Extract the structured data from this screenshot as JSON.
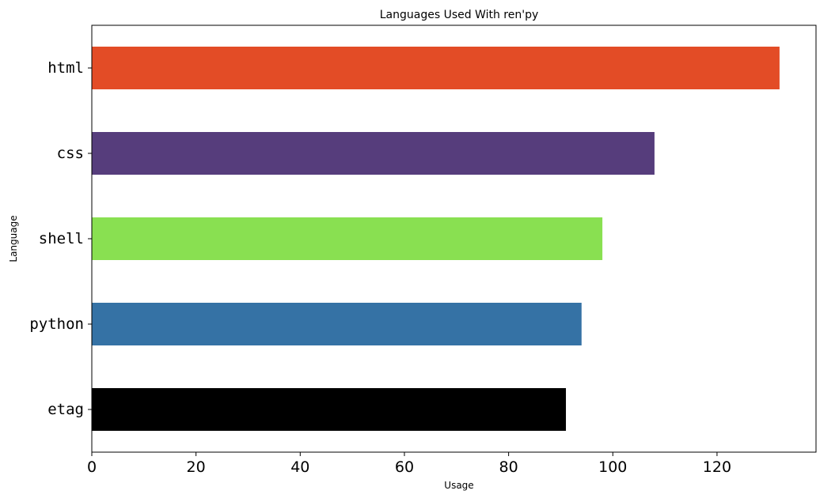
{
  "chart_data": {
    "type": "bar",
    "orientation": "horizontal",
    "title": "Languages Used With ren'py",
    "xlabel": "Usage",
    "ylabel": "Language",
    "categories": [
      "html",
      "css",
      "shell",
      "python",
      "etag"
    ],
    "values": [
      132,
      108,
      98,
      94,
      91
    ],
    "colors": [
      "#e34c26",
      "#563d7c",
      "#89e051",
      "#3572a5",
      "#000000"
    ],
    "xlim": [
      0,
      139
    ],
    "x_ticks": [
      "0",
      "20",
      "40",
      "60",
      "80",
      "100",
      "120"
    ],
    "grid": false,
    "legend": "none"
  }
}
